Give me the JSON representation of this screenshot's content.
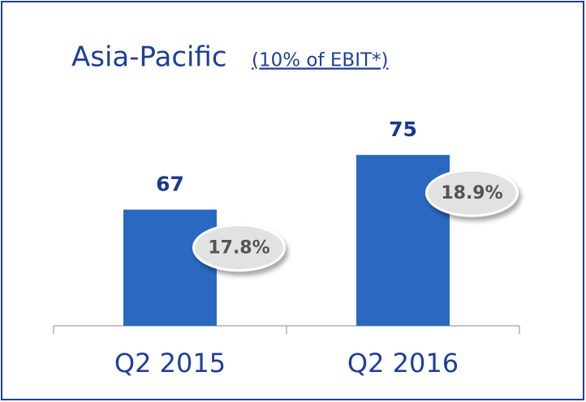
{
  "chart_data": {
    "type": "bar",
    "title": "Asia-Pacific",
    "subtitle": "(10% of EBIT*)",
    "categories": [
      "Q2 2015",
      "Q2 2016"
    ],
    "values": [
      67,
      75
    ],
    "color": "#2a68c2",
    "ylim": [
      50,
      80
    ],
    "margins": {
      "values": [
        17.8,
        18.9
      ],
      "value_labels": [
        "17.8%",
        "18.9%"
      ]
    }
  }
}
